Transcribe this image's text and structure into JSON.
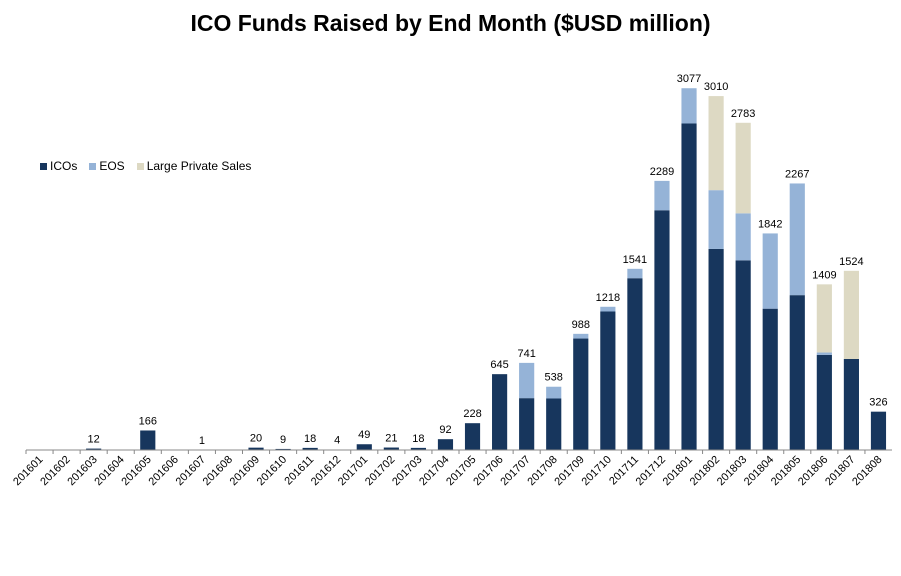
{
  "chart_data": {
    "type": "bar",
    "stacked": true,
    "title": "ICO Funds Raised by End Month ($USD million)",
    "xlabel": "",
    "ylabel": "",
    "ylim": [
      0,
      3300
    ],
    "grid": false,
    "legend_position": "left",
    "categories": [
      "201601",
      "201602",
      "201603",
      "201604",
      "201605",
      "201606",
      "201607",
      "201608",
      "201609",
      "201610",
      "201611",
      "201612",
      "201701",
      "201702",
      "201703",
      "201704",
      "201705",
      "201706",
      "201707",
      "201708",
      "201709",
      "201710",
      "201711",
      "201712",
      "201801",
      "201802",
      "201803",
      "201804",
      "201805",
      "201806",
      "201807",
      "201808"
    ],
    "series": [
      {
        "name": "ICOs",
        "color": "#17365d",
        "values": [
          0,
          0,
          12,
          0,
          166,
          0,
          1,
          0,
          20,
          9,
          18,
          4,
          49,
          21,
          18,
          92,
          228,
          645,
          441,
          438,
          948,
          1178,
          1461,
          2039,
          2777,
          1710,
          1613,
          1202,
          1317,
          809,
          774,
          326
        ]
      },
      {
        "name": "EOS",
        "color": "#95b3d7",
        "values": [
          0,
          0,
          0,
          0,
          0,
          0,
          0,
          0,
          0,
          0,
          0,
          0,
          0,
          0,
          0,
          0,
          0,
          0,
          300,
          100,
          40,
          40,
          80,
          250,
          300,
          500,
          400,
          640,
          950,
          20,
          0,
          0
        ]
      },
      {
        "name": "Large Private Sales",
        "color": "#ddd9c3",
        "values": [
          0,
          0,
          0,
          0,
          0,
          0,
          0,
          0,
          0,
          0,
          0,
          0,
          0,
          0,
          0,
          0,
          0,
          0,
          0,
          0,
          0,
          0,
          0,
          0,
          0,
          800,
          770,
          0,
          0,
          580,
          750,
          0
        ]
      }
    ],
    "totals": [
      "",
      "",
      "12",
      "",
      "166",
      "",
      "1",
      "",
      "20",
      "9",
      "18",
      "4",
      "49",
      "21",
      "18",
      "92",
      "228",
      "645",
      "741",
      "538",
      "988",
      "1218",
      "1541",
      "2289",
      "3077",
      "3010",
      "2783",
      "1842",
      "2267",
      "1409",
      "1524",
      "326"
    ]
  }
}
